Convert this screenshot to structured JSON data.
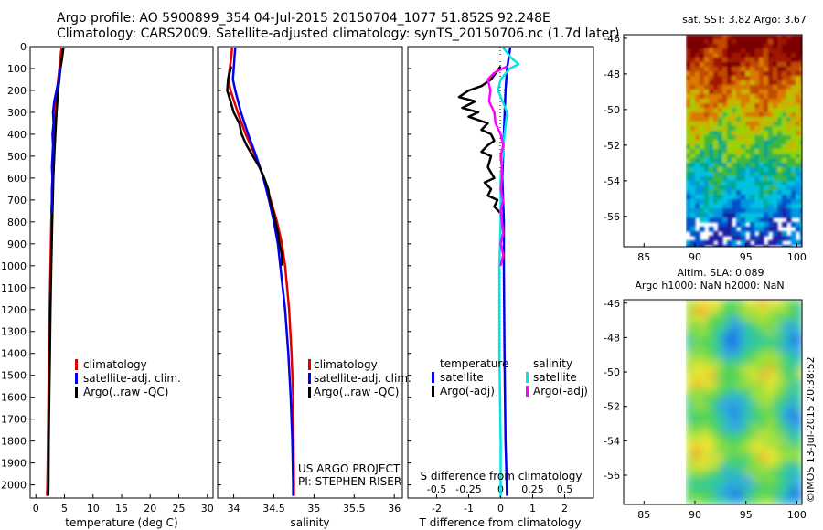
{
  "header": {
    "line1": "Argo profile: AO 5900899_354 04-Jul-2015 20150704_1077 51.852S 92.248E",
    "line2": "Climatology: CARS2009. Satellite-adjusted climatology: synTS_20150706.nc (1.7d later)"
  },
  "credits": {
    "project": "US ARGO PROJECT",
    "pi": "PI: STEPHEN RISER",
    "stamp": "©IMOS 13-Jul-2015 20:38:52"
  },
  "colors": {
    "climatology": "#e00000",
    "satellite": "#0000ee",
    "argo": "#000000",
    "sal_satellite": "#00e5e5",
    "sal_argo": "#ff00ff"
  },
  "depth_axis": {
    "ticks": [
      0,
      100,
      200,
      300,
      400,
      500,
      600,
      700,
      800,
      900,
      1000,
      1100,
      1200,
      1300,
      1400,
      1500,
      1600,
      1700,
      1800,
      1900,
      2000
    ],
    "range": [
      0,
      2060
    ]
  },
  "chart_data": [
    {
      "type": "line",
      "name": "temperature-profile",
      "xlabel": "temperature (deg C)",
      "ylabel": "",
      "xlim": [
        -1,
        31
      ],
      "ylim": [
        2060,
        0
      ],
      "xticks": [
        0,
        5,
        10,
        15,
        20,
        25,
        30
      ],
      "legend": {
        "position": "center-right",
        "entries": [
          "climatology",
          "satellite-adj. clim.",
          "Argo(..raw -QC)"
        ]
      },
      "series": [
        {
          "name": "climatology",
          "depth": [
            5,
            50,
            100,
            200,
            300,
            400,
            500,
            600,
            700,
            800,
            1000,
            1200,
            1400,
            1600,
            1800,
            2000,
            2050
          ],
          "values": [
            4.5,
            4.3,
            4.1,
            3.7,
            3.4,
            3.2,
            3.0,
            2.9,
            2.8,
            2.7,
            2.55,
            2.4,
            2.3,
            2.2,
            2.1,
            2.0,
            1.95
          ]
        },
        {
          "name": "satellite-adj. clim.",
          "depth": [
            5,
            50,
            100,
            200,
            300,
            400,
            500,
            600,
            700,
            800,
            1000,
            1200,
            1400,
            1600,
            1800,
            2000,
            2050
          ],
          "values": [
            4.8,
            4.6,
            4.3,
            3.9,
            3.6,
            3.4,
            3.2,
            3.05,
            2.95,
            2.85,
            2.7,
            2.55,
            2.45,
            2.35,
            2.25,
            2.2,
            2.15
          ]
        },
        {
          "name": "Argo(..raw -QC)",
          "depth": [
            90,
            150,
            200,
            250,
            300,
            350,
            400,
            450,
            500,
            550,
            600,
            650,
            700,
            760
          ],
          "values": [
            4.3,
            4.0,
            3.6,
            3.2,
            3.0,
            3.1,
            2.9,
            3.0,
            2.9,
            2.8,
            2.9,
            2.8,
            2.8,
            2.75
          ]
        }
      ]
    },
    {
      "type": "line",
      "name": "salinity-profile",
      "xlabel": "salinity",
      "xlim": [
        33.8,
        36.1
      ],
      "ylim": [
        2060,
        0
      ],
      "xticks": [
        34,
        34.5,
        35,
        35.5,
        36
      ],
      "xtick_labels": [
        "34",
        "34.5",
        "35",
        "35.5",
        "36"
      ],
      "legend": {
        "position": "center-right",
        "entries": [
          "climatology",
          "satellite-adj. clim.",
          "Argo(..raw -QC)"
        ]
      },
      "series": [
        {
          "name": "climatology",
          "depth": [
            5,
            50,
            100,
            150,
            200,
            300,
            400,
            500,
            600,
            700,
            800,
            900,
            1000,
            1200,
            1400,
            1600,
            1800,
            2000,
            2050
          ],
          "values": [
            33.98,
            33.97,
            33.95,
            33.93,
            33.96,
            34.05,
            34.15,
            34.27,
            34.38,
            34.46,
            34.54,
            34.6,
            34.64,
            34.69,
            34.72,
            34.74,
            34.745,
            34.75,
            34.75
          ]
        },
        {
          "name": "satellite-adj. clim.",
          "depth": [
            5,
            50,
            100,
            150,
            200,
            300,
            400,
            500,
            600,
            700,
            800,
            900,
            1000,
            1200,
            1400,
            1600,
            1800,
            2000,
            2050
          ],
          "values": [
            34.02,
            34.01,
            34.0,
            33.99,
            34.02,
            34.09,
            34.18,
            34.28,
            34.37,
            34.44,
            34.5,
            34.55,
            34.58,
            34.64,
            34.68,
            34.71,
            34.73,
            34.74,
            34.74
          ]
        },
        {
          "name": "Argo(..raw -QC)",
          "depth": [
            90,
            150,
            200,
            250,
            300,
            350,
            400,
            450,
            500,
            550,
            600,
            650,
            700,
            750,
            800,
            850,
            900,
            950,
            1000
          ],
          "values": [
            33.97,
            33.93,
            33.92,
            33.96,
            34.0,
            34.07,
            34.1,
            34.16,
            34.24,
            34.32,
            34.38,
            34.43,
            34.45,
            34.49,
            34.52,
            34.55,
            34.57,
            34.6,
            34.6
          ]
        }
      ]
    },
    {
      "type": "line",
      "name": "difference-profile",
      "xlabel": "T difference from climatology",
      "xlabel_top": "S difference from climatology",
      "xlim": [
        -2.9,
        2.9
      ],
      "ylim": [
        2060,
        0
      ],
      "xticks": [
        -2,
        -1,
        0,
        1,
        2
      ],
      "xticks_top": [
        -0.5,
        -0.25,
        0,
        0.25,
        0.5
      ],
      "xtick_labels_top": [
        "-0.5",
        "-0.25",
        "0",
        "0.25",
        "0.5"
      ],
      "legend": {
        "position": "center",
        "temperature_title": "temperature",
        "salinity_title": "salinity",
        "entries": [
          "satellite",
          "Argo(-adj)",
          "satellite",
          "Argo(-adj)"
        ]
      },
      "series": [
        {
          "name": "temperature satellite",
          "depth": [
            5,
            100,
            200,
            400,
            600,
            800,
            1000,
            1400,
            1800,
            2050
          ],
          "values": [
            0.3,
            0.2,
            0.15,
            0.1,
            0.05,
            0.1,
            0.1,
            0.12,
            0.15,
            0.2
          ]
        },
        {
          "name": "temperature Argo(-adj)",
          "depth": [
            90,
            150,
            180,
            200,
            230,
            250,
            280,
            300,
            320,
            350,
            380,
            400,
            430,
            450,
            480,
            500,
            550,
            600,
            620,
            650,
            680,
            700,
            730,
            760
          ],
          "values": [
            0.0,
            -0.3,
            -0.6,
            -1.0,
            -1.3,
            -0.8,
            -1.2,
            -0.7,
            -1.0,
            -0.4,
            -0.6,
            -0.3,
            -0.2,
            -0.4,
            -0.6,
            -0.3,
            -0.4,
            -0.2,
            -0.5,
            -0.3,
            -0.4,
            -0.1,
            -0.2,
            0.0
          ]
        },
        {
          "name": "salinity satellite",
          "depth": [
            5,
            50,
            80,
            100,
            150,
            200,
            300,
            400,
            600,
            800,
            1000,
            1400,
            1800,
            2050
          ],
          "values": [
            0.02,
            0.08,
            0.14,
            0.07,
            0.0,
            -0.02,
            0.05,
            0.03,
            0.0,
            0.0,
            -0.01,
            -0.01,
            0.0,
            0.0
          ]
        },
        {
          "name": "salinity Argo(-adj)",
          "depth": [
            90,
            120,
            150,
            200,
            250,
            300,
            350,
            400,
            450,
            500,
            550,
            600,
            650,
            700,
            750,
            800,
            850,
            900,
            950,
            1000
          ],
          "values": [
            0.05,
            -0.05,
            -0.1,
            -0.08,
            -0.09,
            -0.05,
            -0.04,
            0.0,
            0.02,
            0.0,
            0.01,
            0.01,
            0.0,
            0.02,
            0.0,
            0.01,
            0.02,
            0.0,
            0.02,
            0.0
          ]
        }
      ]
    },
    {
      "type": "heatmap",
      "name": "sst-map",
      "title": "sat. SST: 3.82  Argo: 3.67",
      "xlim": [
        83,
        100.5
      ],
      "ylim": [
        -57.7,
        -45.8
      ],
      "xticks": [
        85,
        90,
        95,
        100
      ],
      "yticks": [
        -46,
        -48,
        -50,
        -52,
        -54,
        -56
      ]
    },
    {
      "type": "heatmap",
      "name": "sla-map",
      "title": "Altim. SLA: 0.089",
      "subtitle": "Argo h1000: NaN  h2000: NaN",
      "xlim": [
        83,
        100.5
      ],
      "ylim": [
        -57.7,
        -45.8
      ],
      "xticks": [
        85,
        90,
        95,
        100
      ],
      "yticks": [
        -46,
        -48,
        -50,
        -52,
        -54,
        -56
      ]
    }
  ]
}
